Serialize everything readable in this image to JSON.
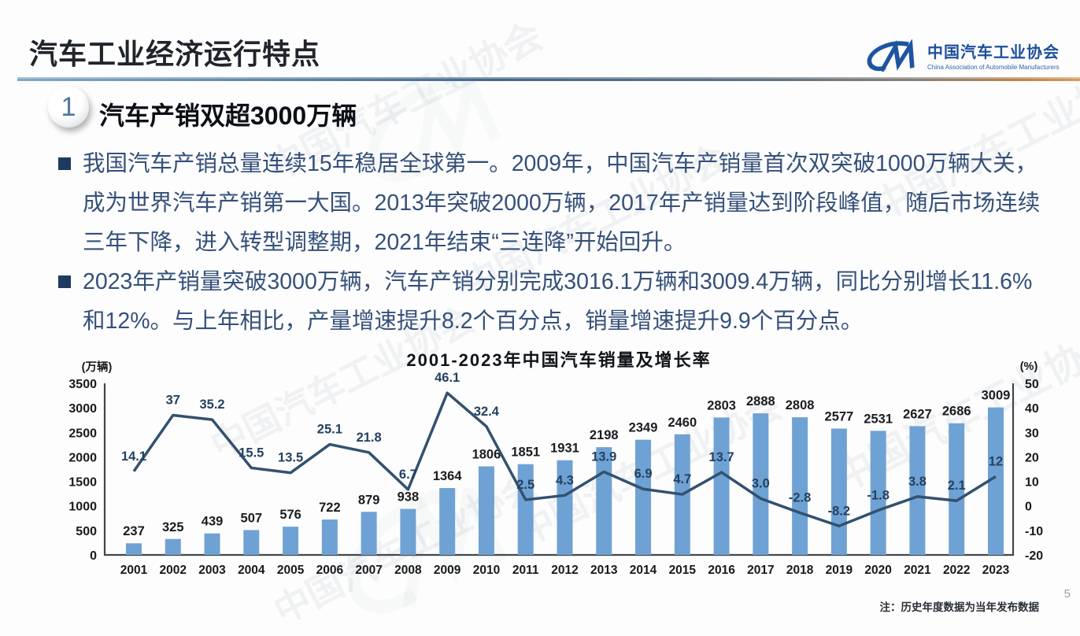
{
  "header": {
    "title": "汽车工业经济运行特点",
    "logo": {
      "mark": "CM",
      "name_cn": "中国汽车工业协会",
      "name_en": "China Association of Automobile Manufacturers"
    }
  },
  "section": {
    "number": "1",
    "title": "汽车产销双超3000万辆"
  },
  "bullets": [
    "我国汽车产销总量连续15年稳居全球第一。2009年，中国汽车产销量首次双突破1000万辆大关，\n成为世界汽车产销第一大国。2013年突破2000万辆，2017年产销量达到阶段峰值，随后市场连续\n三年下降，进入转型调整期，2021年结束“三连降”开始回升。",
    "2023年产销量突破3000万辆，汽车产销分别完成3016.1万辆和3009.4万辆，同比分别增长11.6%\n和12%。与上年相比，产量增速提升8.2个百分点，销量增速提升9.9个百分点。"
  ],
  "watermark": "中国汽车工业协会",
  "footnote": "注：历史年度数据为当年发布数据",
  "page_number": "5",
  "chart_data": {
    "type": "combo",
    "title": "2001-2023年中国汽车销量及增长率",
    "categories": [
      "2001",
      "2002",
      "2003",
      "2004",
      "2005",
      "2006",
      "2007",
      "2008",
      "2009",
      "2010",
      "2011",
      "2012",
      "2013",
      "2014",
      "2015",
      "2016",
      "2017",
      "2018",
      "2019",
      "2020",
      "2021",
      "2022",
      "2023"
    ],
    "series": [
      {
        "name": "销量(万辆)",
        "type": "bar",
        "values": [
          237,
          325,
          439,
          507,
          576,
          722,
          879,
          938,
          1364,
          1806,
          1851,
          1931,
          2198,
          2349,
          2460,
          2803,
          2888,
          2808,
          2577,
          2531,
          2627,
          2686,
          3009
        ]
      },
      {
        "name": "增长率(%)",
        "type": "line",
        "values": [
          14.1,
          37,
          35.2,
          15.5,
          13.5,
          25.1,
          21.8,
          6.7,
          46.1,
          32.4,
          2.5,
          4.3,
          13.9,
          6.9,
          4.7,
          13.7,
          3.0,
          -2.8,
          -8.2,
          -1.8,
          3.8,
          2.1,
          12
        ],
        "labels": [
          "14.1",
          "37",
          "35.2",
          "15.5",
          "13.5",
          "25.1",
          "21.8",
          "6.7",
          "46.1",
          "32.4",
          "2.5",
          "4.3",
          "13.9",
          "6.9",
          "4.7",
          "13.7",
          "3.0",
          "-2.8",
          "-8.2",
          "-1.8",
          "3.8",
          "2.1",
          "12"
        ]
      }
    ],
    "left_axis": {
      "label": "(万辆)",
      "min": 0,
      "max": 3500,
      "step": 500
    },
    "right_axis": {
      "label": "(%)",
      "min": -20,
      "max": 50,
      "step": 10
    },
    "bar_color": "#6fa2d4",
    "line_color": "#33516f",
    "legend": "none",
    "grid": "off"
  }
}
